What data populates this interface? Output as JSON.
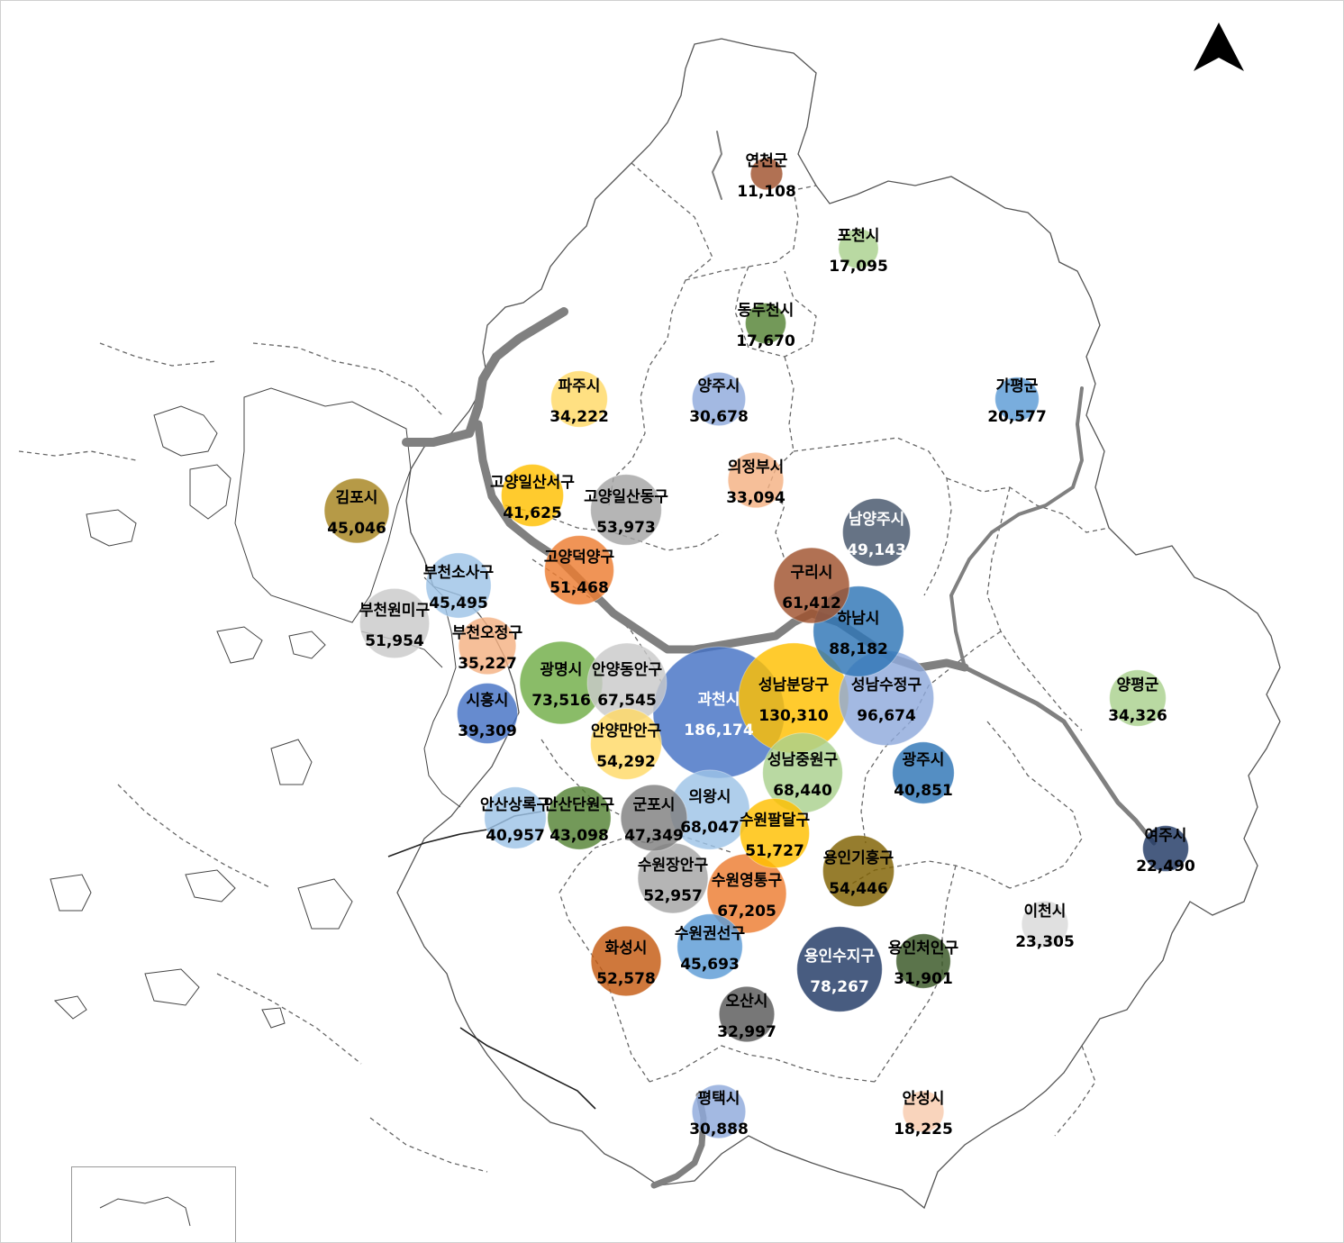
{
  "colors": {
    "brown": "#a0522d",
    "light-green": "#a9d18e",
    "dark-green": "#548235",
    "yellow": "#ffd966",
    "gold": "#ffc000",
    "lavender-blue": "#8faadc",
    "sky-blue": "#5b9bd5",
    "peach": "#f4b183",
    "orange": "#ed7d31",
    "olive-gold": "#a6841e",
    "gray": "#a5a5a5",
    "light-gray": "#c9c9c9",
    "navy": "#44546a",
    "steel-blue": "#2e75b6",
    "royal-blue": "#4472c4",
    "pale-blue": "#9dc3e6",
    "dark-gray": "#595959",
    "medium-green": "#70ad47",
    "slate": "#203864",
    "dark-olive": "#375623"
  },
  "map": {
    "north_arrow": "north-arrow-icon",
    "regions": [
      {
        "name": "연천군",
        "value": "11,108",
        "amount": 11108,
        "color": "#a0522d",
        "light": false
      },
      {
        "name": "포천시",
        "value": "17,095",
        "amount": 17095,
        "color": "#a9d18e",
        "light": false
      },
      {
        "name": "동두천시",
        "value": "17,670",
        "amount": 17670,
        "color": "#548235",
        "light": false
      },
      {
        "name": "파주시",
        "value": "34,222",
        "amount": 34222,
        "color": "#ffd966",
        "light": false
      },
      {
        "name": "양주시",
        "value": "30,678",
        "amount": 30678,
        "color": "#8faadc",
        "light": false
      },
      {
        "name": "가평군",
        "value": "20,577",
        "amount": 20577,
        "color": "#5b9bd5",
        "light": false
      },
      {
        "name": "의정부시",
        "value": "33,094",
        "amount": 33094,
        "color": "#f4b183",
        "light": false
      },
      {
        "name": "고양일산서구",
        "value": "41,625",
        "amount": 41625,
        "color": "#ffc000",
        "light": false
      },
      {
        "name": "고양일산동구",
        "value": "53,973",
        "amount": 53973,
        "color": "#a5a5a5",
        "light": false
      },
      {
        "name": "김포시",
        "value": "45,046",
        "amount": 45046,
        "color": "#a6841e",
        "light": false
      },
      {
        "name": "남양주시",
        "value": "49,143",
        "amount": 49143,
        "color": "#44546a",
        "light": true
      },
      {
        "name": "고양덕양구",
        "value": "51,468",
        "amount": 51468,
        "color": "#ed7d31",
        "light": false
      },
      {
        "name": "부천소사구",
        "value": "45,495",
        "amount": 45495,
        "color": "#9dc3e6",
        "light": false
      },
      {
        "name": "구리시",
        "value": "61,412",
        "amount": 61412,
        "color": "#a0522d",
        "light": false
      },
      {
        "name": "하남시",
        "value": "88,182",
        "amount": 88182,
        "color": "#2e75b6",
        "light": false
      },
      {
        "name": "부천원미구",
        "value": "51,954",
        "amount": 51954,
        "color": "#c9c9c9",
        "light": false
      },
      {
        "name": "부천오정구",
        "value": "35,227",
        "amount": 35227,
        "color": "#f4b183",
        "light": false
      },
      {
        "name": "광명시",
        "value": "73,516",
        "amount": 73516,
        "color": "#70ad47",
        "light": false
      },
      {
        "name": "안양동안구",
        "value": "67,545",
        "amount": 67545,
        "color": "#c9c9c9",
        "light": false
      },
      {
        "name": "과천시",
        "value": "186,174",
        "amount": 186174,
        "color": "#4472c4",
        "light": true
      },
      {
        "name": "성남분당구",
        "value": "130,310",
        "amount": 130310,
        "color": "#ffc000",
        "light": false
      },
      {
        "name": "성남수정구",
        "value": "96,674",
        "amount": 96674,
        "color": "#8faadc",
        "light": false
      },
      {
        "name": "양평군",
        "value": "34,326",
        "amount": 34326,
        "color": "#a9d18e",
        "light": false
      },
      {
        "name": "시흥시",
        "value": "39,309",
        "amount": 39309,
        "color": "#4472c4",
        "light": false
      },
      {
        "name": "안양만안구",
        "value": "54,292",
        "amount": 54292,
        "color": "#ffd966",
        "light": false
      },
      {
        "name": "성남중원구",
        "value": "68,440",
        "amount": 68440,
        "color": "#a9d18e",
        "light": false
      },
      {
        "name": "광주시",
        "value": "40,851",
        "amount": 40851,
        "color": "#2e75b6",
        "light": false
      },
      {
        "name": "안산상록구",
        "value": "40,957",
        "amount": 40957,
        "color": "#9dc3e6",
        "light": false
      },
      {
        "name": "안산단원구",
        "value": "43,098",
        "amount": 43098,
        "color": "#548235",
        "light": false
      },
      {
        "name": "군포시",
        "value": "47,349",
        "amount": 47349,
        "color": "#7f7f7f",
        "light": false
      },
      {
        "name": "의왕시",
        "value": "68,047",
        "amount": 68047,
        "color": "#9dc3e6",
        "light": false
      },
      {
        "name": "수원팔달구",
        "value": "51,727",
        "amount": 51727,
        "color": "#ffc000",
        "light": false
      },
      {
        "name": "여주시",
        "value": "22,490",
        "amount": 22490,
        "color": "#203864",
        "light": false
      },
      {
        "name": "용인기흥구",
        "value": "54,446",
        "amount": 54446,
        "color": "#7f6000",
        "light": false
      },
      {
        "name": "수원장안구",
        "value": "52,957",
        "amount": 52957,
        "color": "#a5a5a5",
        "light": false
      },
      {
        "name": "수원영통구",
        "value": "67,205",
        "amount": 67205,
        "color": "#ed7d31",
        "light": false
      },
      {
        "name": "이천시",
        "value": "23,305",
        "amount": 23305,
        "color": "#d9d9d9",
        "light": false
      },
      {
        "name": "수원권선구",
        "value": "45,693",
        "amount": 45693,
        "color": "#5b9bd5",
        "light": false
      },
      {
        "name": "화성시",
        "value": "52,578",
        "amount": 52578,
        "color": "#c55a11",
        "light": false
      },
      {
        "name": "용인수지구",
        "value": "78,267",
        "amount": 78267,
        "color": "#203864",
        "light": true
      },
      {
        "name": "용인처인구",
        "value": "31,901",
        "amount": 31901,
        "color": "#375623",
        "light": false
      },
      {
        "name": "오산시",
        "value": "32,997",
        "amount": 32997,
        "color": "#595959",
        "light": false
      },
      {
        "name": "평택시",
        "value": "30,888",
        "amount": 30888,
        "color": "#8faadc",
        "light": false
      },
      {
        "name": "안성시",
        "value": "18,225",
        "amount": 18225,
        "color": "#f8cbad",
        "light": false
      }
    ]
  }
}
